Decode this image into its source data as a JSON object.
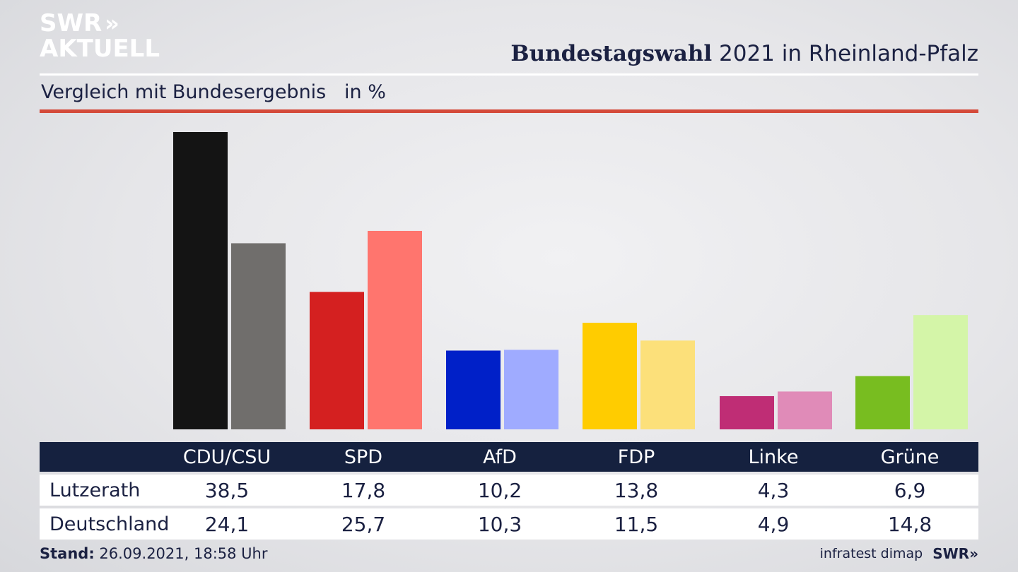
{
  "header": {
    "logo_line1": "SWR",
    "logo_arrows": "»",
    "logo_line2": "AKTUELL",
    "title_bold": "Bundestagswahl",
    "title_rest": " 2021 in Rheinland-Pfalz",
    "subtitle": "Vergleich mit Bundesergebnis   in %"
  },
  "colors": {
    "accent_line": "#d44a3a",
    "header_bar": "#15213f"
  },
  "chart_data": {
    "type": "bar",
    "categories": [
      "CDU/CSU",
      "SPD",
      "AfD",
      "FDP",
      "Linke",
      "Grüne"
    ],
    "series": [
      {
        "name": "Lutzerath",
        "values": [
          38.5,
          17.8,
          10.2,
          13.8,
          4.3,
          6.9
        ],
        "colors": [
          "#141414",
          "#d42020",
          "#0020c8",
          "#ffcc00",
          "#bf2d75",
          "#78bd20"
        ]
      },
      {
        "name": "Deutschland",
        "values": [
          24.1,
          25.7,
          10.3,
          11.5,
          4.9,
          14.8
        ],
        "colors": [
          "#706e6c",
          "#ff756e",
          "#9fabff",
          "#fce07a",
          "#e08bb8",
          "#d4f5a8"
        ]
      }
    ],
    "ylim": [
      0,
      38.5
    ],
    "grid": false
  },
  "table": {
    "rows": [
      {
        "label": "Lutzerath",
        "values": [
          "38,5",
          "17,8",
          "10,2",
          "13,8",
          "4,3",
          "6,9"
        ]
      },
      {
        "label": "Deutschland",
        "values": [
          "24,1",
          "25,7",
          "10,3",
          "11,5",
          "4,9",
          "14,8"
        ]
      }
    ]
  },
  "footer": {
    "stand_label": "Stand:",
    "stand_value": " 26.09.2021, 18:58 Uhr",
    "source": "infratest dimap",
    "brand": "SWR»"
  }
}
